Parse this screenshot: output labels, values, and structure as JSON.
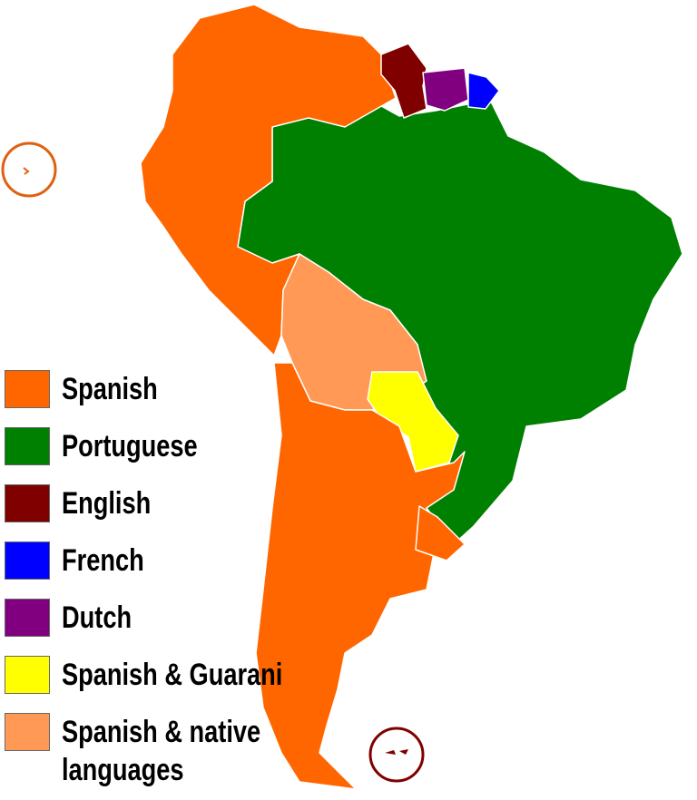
{
  "legend": {
    "items": [
      {
        "label": "Spanish",
        "color": "#ff6600"
      },
      {
        "label": "Portuguese",
        "color": "#008000"
      },
      {
        "label": "English",
        "color": "#800000"
      },
      {
        "label": "French",
        "color": "#0000ff"
      },
      {
        "label": "Dutch",
        "color": "#800080"
      },
      {
        "label": "Spanish & Guarani",
        "color": "#ffff00"
      },
      {
        "label": "Spanish & native languages",
        "color": "#ff9955"
      }
    ]
  }
}
